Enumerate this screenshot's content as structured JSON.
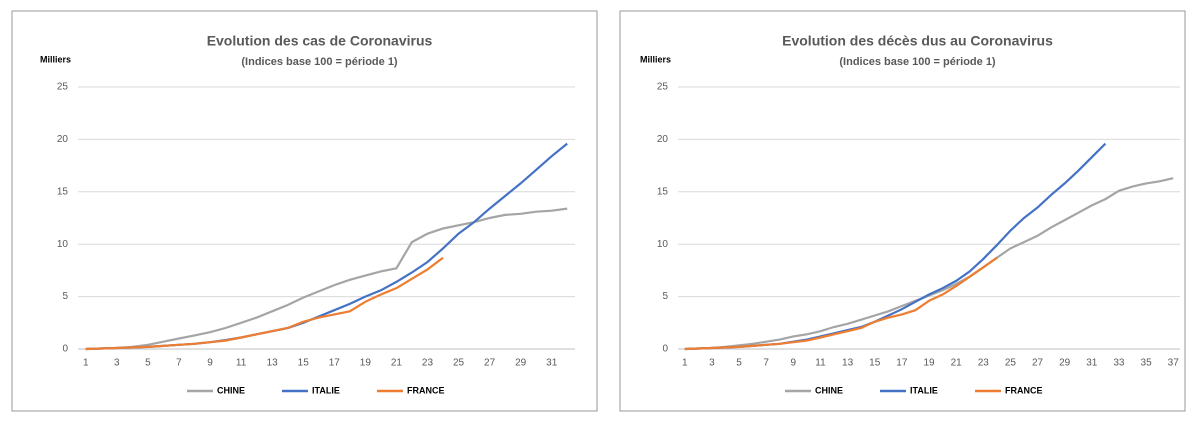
{
  "chart_data": [
    {
      "type": "line",
      "title": "Evolution des cas de Coronavirus",
      "subtitle": "(Indices base 100 = période 1)",
      "ylabel": "Milliers",
      "categories": [
        1,
        null,
        3,
        null,
        5,
        null,
        7,
        null,
        9,
        null,
        11,
        null,
        13,
        null,
        15,
        null,
        17,
        null,
        19,
        null,
        21,
        null,
        23,
        null,
        25,
        null,
        27,
        null,
        29,
        null,
        31,
        null
      ],
      "ylim": [
        0,
        25
      ],
      "yticks": [
        0,
        5,
        10,
        15,
        20,
        25
      ],
      "grid": true,
      "legend": "bottom",
      "series": [
        {
          "name": "CHINE",
          "color": "#a5a5a5",
          "values": [
            0,
            0.05,
            0.1,
            0.2,
            0.4,
            0.7,
            1.0,
            1.3,
            1.6,
            2.0,
            2.5,
            3.0,
            3.6,
            4.2,
            4.9,
            5.5,
            6.1,
            6.6,
            7.0,
            7.4,
            7.7,
            10.2,
            11.0,
            11.5,
            11.8,
            12.1,
            12.5,
            12.8,
            12.9,
            13.1,
            13.2,
            13.4
          ]
        },
        {
          "name": "ITALIE",
          "color": "#4472c4",
          "values": [
            0,
            0.05,
            0.1,
            0.15,
            0.2,
            0.3,
            0.4,
            0.5,
            0.65,
            0.85,
            1.1,
            1.4,
            1.7,
            2.0,
            2.5,
            3.1,
            3.7,
            4.3,
            5.0,
            5.6,
            6.4,
            7.3,
            8.3,
            9.6,
            11.0,
            12.1,
            13.4,
            14.6,
            15.8,
            17.1,
            18.4,
            19.6
          ]
        },
        {
          "name": "FRANCE",
          "color": "#ed7d31",
          "values": [
            0,
            0.05,
            0.1,
            0.15,
            0.2,
            0.3,
            0.4,
            0.5,
            0.65,
            0.8,
            1.1,
            1.4,
            1.7,
            2.0,
            2.6,
            3.0,
            3.3,
            3.6,
            4.5,
            5.2,
            5.8,
            6.7,
            7.6,
            8.7,
            null,
            null,
            null,
            null,
            null,
            null,
            null,
            null
          ]
        }
      ]
    },
    {
      "type": "line",
      "title": "Evolution des décès dus au Coronavirus",
      "subtitle": "(Indices base 100 = période 1)",
      "ylabel": "Milliers",
      "categories": [
        1,
        null,
        3,
        null,
        5,
        null,
        7,
        null,
        9,
        null,
        11,
        null,
        13,
        null,
        15,
        null,
        17,
        null,
        19,
        null,
        21,
        null,
        23,
        null,
        25,
        null,
        27,
        null,
        29,
        null,
        31,
        null,
        33,
        null,
        35,
        null,
        37
      ],
      "ylim": [
        0,
        25
      ],
      "yticks": [
        0,
        5,
        10,
        15,
        20,
        25
      ],
      "grid": true,
      "legend": "bottom",
      "series": [
        {
          "name": "CHINE",
          "color": "#a5a5a5",
          "values": [
            0,
            0.05,
            0.1,
            0.2,
            0.35,
            0.5,
            0.7,
            0.9,
            1.2,
            1.4,
            1.7,
            2.1,
            2.4,
            2.8,
            3.2,
            3.6,
            4.1,
            4.6,
            5.1,
            5.6,
            6.2,
            6.9,
            7.8,
            8.7,
            9.6,
            10.2,
            10.8,
            11.6,
            12.3,
            13.0,
            13.7,
            14.3,
            15.1,
            15.5,
            15.8,
            16.0,
            16.3
          ]
        },
        {
          "name": "ITALIE",
          "color": "#4472c4",
          "values": [
            0,
            0.05,
            0.1,
            0.15,
            0.2,
            0.3,
            0.4,
            0.5,
            0.7,
            0.9,
            1.2,
            1.5,
            1.8,
            2.1,
            2.6,
            3.2,
            3.8,
            4.5,
            5.2,
            5.8,
            6.5,
            7.4,
            8.6,
            9.9,
            11.3,
            12.5,
            13.5,
            14.7,
            15.8,
            17.0,
            18.3,
            19.6,
            null,
            null,
            null,
            null,
            null
          ]
        },
        {
          "name": "FRANCE",
          "color": "#ed7d31",
          "values": [
            0,
            0.05,
            0.1,
            0.15,
            0.2,
            0.3,
            0.4,
            0.5,
            0.65,
            0.8,
            1.1,
            1.4,
            1.7,
            2.0,
            2.6,
            3.0,
            3.3,
            3.7,
            4.6,
            5.2,
            6.0,
            6.9,
            7.8,
            8.7,
            null,
            null,
            null,
            null,
            null,
            null,
            null,
            null,
            null,
            null,
            null,
            null,
            null
          ]
        }
      ]
    }
  ]
}
